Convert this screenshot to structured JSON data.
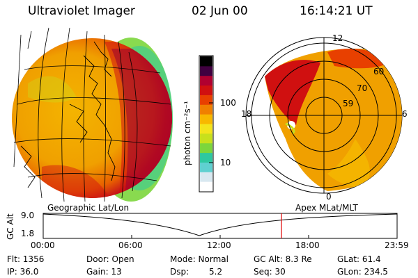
{
  "header": {
    "title": "Ultraviolet Imager",
    "date": "02 Jun 00",
    "time": "16:14:21 UT"
  },
  "colorbar": {
    "unit_label": "photon cm⁻²s⁻¹",
    "tick_labels": [
      "100",
      "10"
    ],
    "colors": [
      "#ffffff",
      "#d8e8f0",
      "#5fd0d0",
      "#2ec8a0",
      "#7cd63c",
      "#c8e01c",
      "#f4e41c",
      "#f8b800",
      "#f08000",
      "#e84000",
      "#d01010",
      "#b00030",
      "#400040",
      "#000000"
    ]
  },
  "map_left": {
    "caption": "Geographic Lat/Lon"
  },
  "map_right": {
    "caption": "Apex MLat/MLT",
    "mlt_labels": {
      "top": "12",
      "left": "18",
      "right": "6",
      "bottom": "0"
    },
    "lat_labels": [
      "60",
      "70",
      "59"
    ]
  },
  "altitude_plot": {
    "axis_label": "GC Alt",
    "y_ticks": [
      "9.0",
      "1.8"
    ],
    "x_ticks": [
      "00:00",
      "06:00",
      "12:00",
      "18:00",
      "23:59"
    ],
    "current_time_marker_color": "#e00000"
  },
  "status": {
    "flt": "Flt: 1356",
    "ip": "IP: 36.0",
    "door": "Door: Open",
    "gain": "Gain: 13",
    "mode": "Mode: Normal",
    "dsp": "Dsp:",
    "dsp_value": "5.2",
    "gc_alt": "GC Alt: 8.3 Re",
    "seq": "Seq: 30",
    "glat": "GLat: 61.4",
    "glon": "GLon: 234.5"
  }
}
